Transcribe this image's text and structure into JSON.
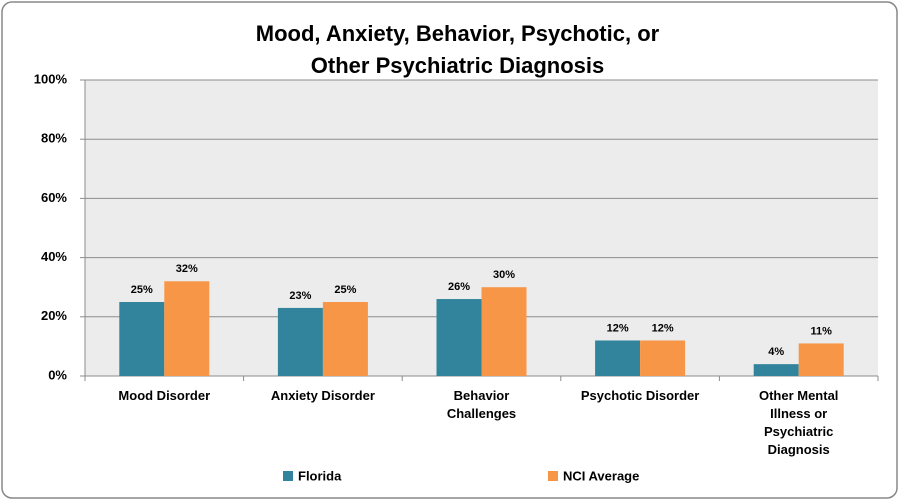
{
  "chart_data": {
    "type": "bar",
    "title": "Mood, Anxiety, Behavior,  Psychotic, or Other Psychiatric Diagnosis",
    "categories": [
      "Mood Disorder",
      "Anxiety Disorder",
      "Behavior\nChallenges",
      "Psychotic Disorder",
      "Other Mental\nIllness or\nPsychiatric\nDiagnosis"
    ],
    "series": [
      {
        "name": "Florida",
        "color": "#31849b",
        "values": [
          25,
          23,
          26,
          12,
          4
        ],
        "value_labels": [
          "25%",
          "23%",
          "26%",
          "12%",
          "4%"
        ]
      },
      {
        "name": "NCI Average",
        "color": "#f79646",
        "values": [
          32,
          25,
          30,
          12,
          11
        ],
        "value_labels": [
          "32%",
          "25%",
          "30%",
          "12%",
          "11%"
        ]
      }
    ],
    "ylim": [
      0,
      100
    ],
    "yticks": [
      {
        "value": 0,
        "label": "0%"
      },
      {
        "value": 20,
        "label": "20%"
      },
      {
        "value": 40,
        "label": "40%"
      },
      {
        "value": 60,
        "label": "60%"
      },
      {
        "value": 80,
        "label": "80%"
      },
      {
        "value": 100,
        "label": "100%"
      }
    ],
    "grid": true,
    "legend": "bottom"
  }
}
